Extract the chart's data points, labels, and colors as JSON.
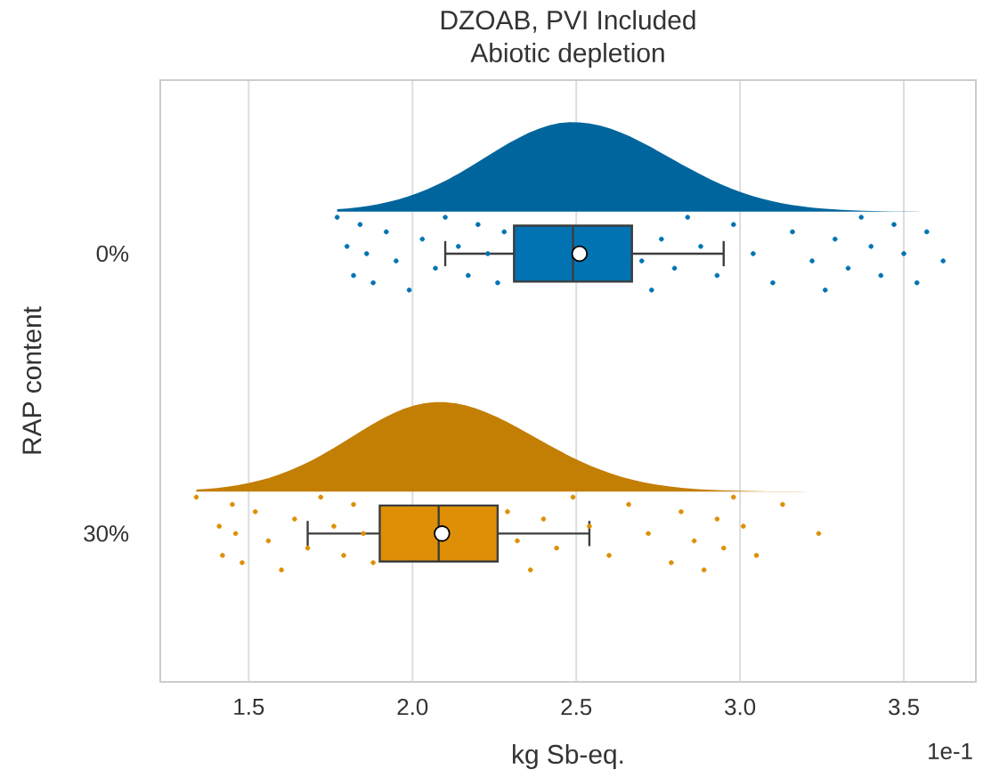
{
  "chart_data": {
    "type": "box",
    "title": "DZOAB, PVI Included",
    "subtitle": "Abiotic depletion",
    "xlabel": "kg Sb-eq.",
    "ylabel": "RAP content",
    "annotations": [
      "1e-1"
    ],
    "orientation": "horizontal",
    "categories": [
      "0%",
      "30%"
    ],
    "colors": [
      "#0173b2",
      "#de8f05"
    ],
    "boxes": [
      {
        "low": 2.1,
        "q1": 2.31,
        "median": 2.49,
        "q3": 2.67,
        "high": 2.95,
        "mean": 2.51
      },
      {
        "low": 1.68,
        "q1": 1.9,
        "median": 2.08,
        "q3": 2.26,
        "high": 2.54,
        "mean": 2.09
      }
    ],
    "xlim": [
      1.23,
      3.72
    ],
    "xticks": [
      1.5,
      {
        "value": 2.0,
        "label": "2.0"
      },
      2.5,
      {
        "value": 3.0,
        "label": "3.0"
      },
      3.5
    ],
    "grid": "x",
    "marker": "circle",
    "series": [
      {
        "type": "scatter",
        "color": "#0173b2",
        "x": [
          "0%",
          "0%",
          "0%",
          "0%",
          "0%",
          "0%",
          "0%",
          "0%",
          "0%",
          "0%",
          "0%",
          "0%",
          "0%",
          "0%",
          "0%",
          "0%",
          "0%",
          "0%",
          "0%",
          "0%",
          "0%",
          "0%",
          "0%",
          "0%",
          "0%",
          "0%",
          "0%",
          "0%",
          "0%",
          "0%",
          "0%",
          "0%",
          "0%",
          "0%",
          "0%",
          "0%",
          "0%",
          "0%",
          "0%",
          "0%",
          "0%"
        ],
        "values": [
          1.77,
          1.8,
          1.82,
          1.84,
          1.86,
          1.88,
          1.92,
          1.95,
          1.99,
          2.03,
          2.07,
          2.1,
          2.14,
          2.17,
          2.2,
          2.23,
          2.26,
          2.28,
          2.7,
          2.73,
          2.76,
          2.8,
          2.84,
          2.88,
          2.93,
          2.98,
          3.04,
          3.1,
          3.16,
          3.22,
          3.26,
          3.29,
          3.33,
          3.37,
          3.4,
          3.43,
          3.47,
          3.5,
          3.54,
          3.57,
          3.62
        ]
      },
      {
        "type": "scatter",
        "color": "#de8f05",
        "x": [
          "30%",
          "30%",
          "30%",
          "30%",
          "30%",
          "30%",
          "30%",
          "30%",
          "30%",
          "30%",
          "30%",
          "30%",
          "30%",
          "30%",
          "30%",
          "30%",
          "30%",
          "30%",
          "30%",
          "30%",
          "30%",
          "30%",
          "30%",
          "30%",
          "30%",
          "30%",
          "30%",
          "30%",
          "30%",
          "30%",
          "30%",
          "30%",
          "30%",
          "30%",
          "30%",
          "30%",
          "30%",
          "30%"
        ],
        "values": [
          1.34,
          1.41,
          1.42,
          1.45,
          1.46,
          1.48,
          1.52,
          1.56,
          1.6,
          1.64,
          1.68,
          1.72,
          1.76,
          1.79,
          1.82,
          1.85,
          1.88,
          2.29,
          2.32,
          2.36,
          2.4,
          2.44,
          2.49,
          2.54,
          2.6,
          2.66,
          2.72,
          2.79,
          2.82,
          2.86,
          2.89,
          2.93,
          2.95,
          2.98,
          3.01,
          3.05,
          3.13,
          3.24
        ]
      }
    ]
  }
}
